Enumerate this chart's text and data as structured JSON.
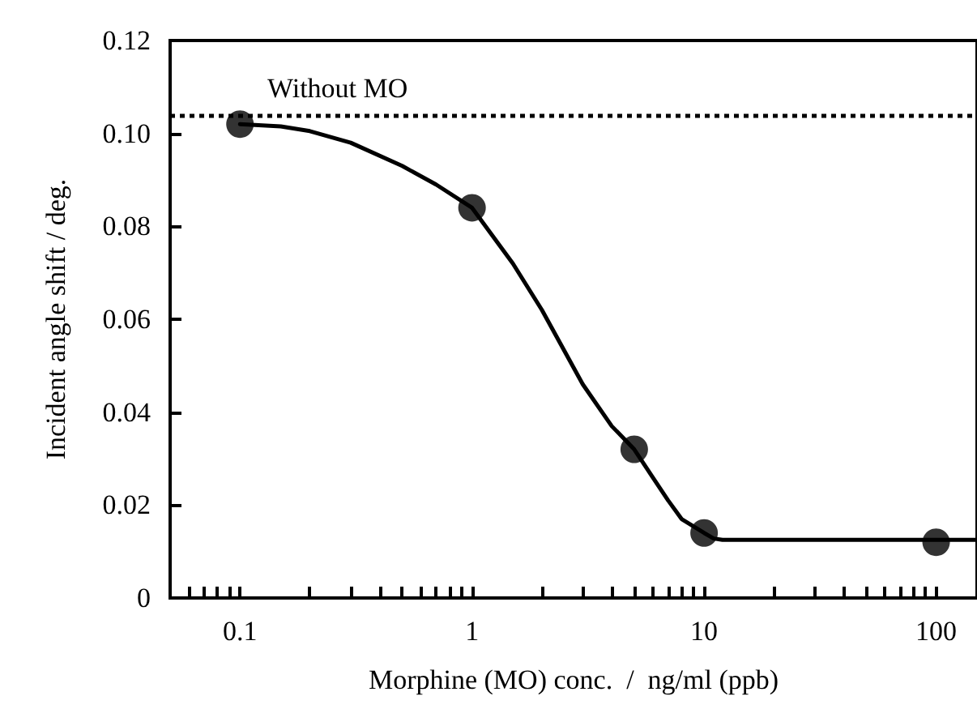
{
  "chart_data": {
    "type": "scatter",
    "xlabel": "Morphine (MO) conc.  /  ng/ml (ppb)",
    "ylabel": "Incident angle shift / deg.",
    "log": "x",
    "xlim": [
      0.05,
      150
    ],
    "ylim": [
      0,
      0.12
    ],
    "xticks": [
      {
        "value": 0.06,
        "label": null
      },
      {
        "value": 0.07,
        "label": null
      },
      {
        "value": 0.08,
        "label": null
      },
      {
        "value": 0.09,
        "label": null
      },
      0.1,
      {
        "value": 0.2,
        "label": null
      },
      {
        "value": 0.3,
        "label": null
      },
      {
        "value": 0.4,
        "label": null
      },
      {
        "value": 0.5,
        "label": null
      },
      {
        "value": 0.6,
        "label": null
      },
      {
        "value": 0.7,
        "label": null
      },
      {
        "value": 0.8,
        "label": null
      },
      {
        "value": 0.9,
        "label": null
      },
      1,
      {
        "value": 2,
        "label": null
      },
      {
        "value": 3,
        "label": null
      },
      {
        "value": 4,
        "label": null
      },
      {
        "value": 5,
        "label": null
      },
      {
        "value": 6,
        "label": null
      },
      {
        "value": 7,
        "label": null
      },
      {
        "value": 8,
        "label": null
      },
      {
        "value": 9,
        "label": null
      },
      10,
      {
        "value": 20,
        "label": null
      },
      {
        "value": 30,
        "label": null
      },
      {
        "value": 40,
        "label": null
      },
      {
        "value": 50,
        "label": null
      },
      {
        "value": 60,
        "label": null
      },
      {
        "value": 70,
        "label": null
      },
      {
        "value": 80,
        "label": null
      },
      {
        "value": 90,
        "label": null
      },
      100
    ],
    "yticks": [
      0,
      {
        "value": 0.02,
        "label": "0.02"
      },
      {
        "value": 0.04,
        "label": "0.04"
      },
      {
        "value": 0.06,
        "label": "0.06"
      },
      {
        "value": 0.08,
        "label": "0.08"
      },
      {
        "value": 0.1,
        "label": "0.10"
      },
      {
        "value": 0.12,
        "label": "0.12"
      }
    ],
    "grid": false,
    "marker": "circle",
    "series": [
      {
        "type": "line",
        "color": "#000000",
        "marker": "none",
        "x": [
          0.1,
          0.15,
          0.2,
          0.3,
          0.5,
          0.7,
          1,
          1.5,
          2,
          3,
          4,
          5,
          6,
          7,
          8,
          10,
          11,
          12,
          150
        ],
        "values": [
          0.102,
          0.1015,
          0.1005,
          0.098,
          0.093,
          0.089,
          0.084,
          0.072,
          0.062,
          0.046,
          0.037,
          0.032,
          0.026,
          0.021,
          0.017,
          0.014,
          0.0128,
          0.0125,
          0.0125
        ]
      },
      {
        "color": "#000000",
        "x": [
          0.1,
          1,
          5,
          10,
          100
        ],
        "values": [
          0.102,
          0.084,
          0.032,
          0.014,
          0.012
        ]
      }
    ],
    "ref_lines": [
      {
        "axis": "y",
        "value": 0.104,
        "label": "Without MO",
        "line_style": "dotted",
        "color": "#000000"
      }
    ]
  }
}
